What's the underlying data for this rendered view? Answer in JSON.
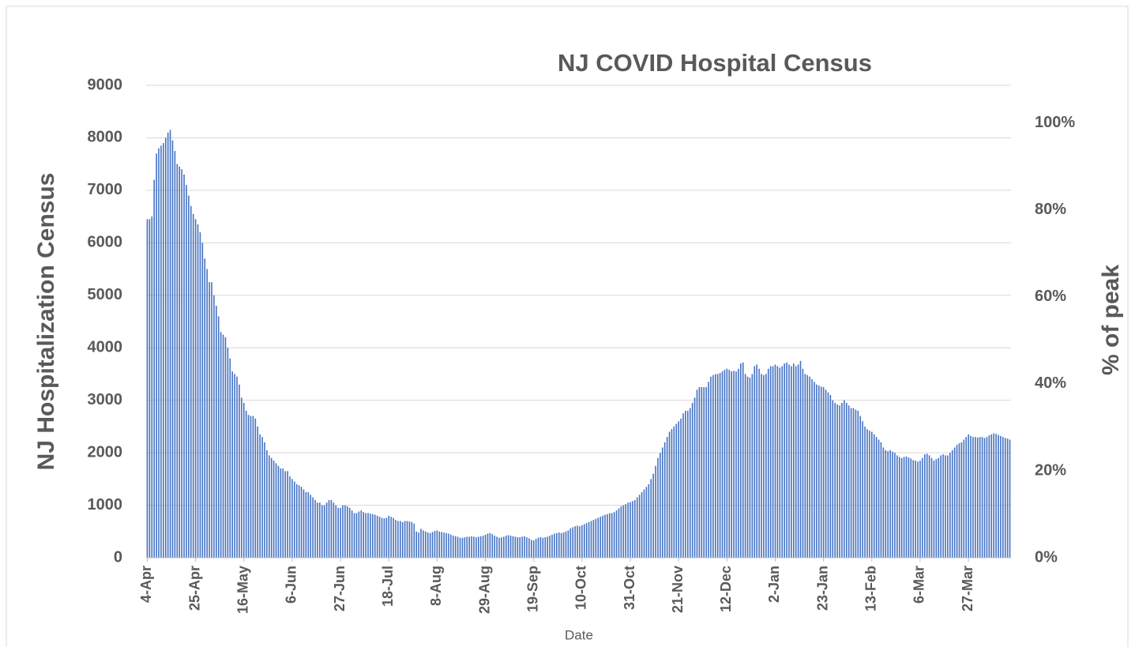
{
  "chart_data": {
    "type": "bar",
    "title": "NJ COVID Hospital Census",
    "xlabel": "Date",
    "ylabel": "NJ Hospitalization Census",
    "y2label": "% of peak",
    "color": "#4472c4",
    "grid": true,
    "ylim": [
      0,
      9000
    ],
    "yticks": [
      0,
      1000,
      2000,
      3000,
      4000,
      5000,
      6000,
      7000,
      8000,
      9000
    ],
    "y2lim": [
      0,
      108.7
    ],
    "y2ticks": [
      {
        "value": 0,
        "label": "0%"
      },
      {
        "value": 20,
        "label": "20%"
      },
      {
        "value": 40,
        "label": "40%"
      },
      {
        "value": 60,
        "label": "60%"
      },
      {
        "value": 80,
        "label": "80%"
      },
      {
        "value": 100,
        "label": "100%"
      }
    ],
    "categories": [
      "4-Apr",
      null,
      null,
      null,
      null,
      null,
      null,
      null,
      null,
      null,
      null,
      null,
      null,
      null,
      null,
      null,
      null,
      null,
      null,
      null,
      null,
      "25-Apr",
      null,
      null,
      null,
      null,
      null,
      null,
      null,
      null,
      null,
      null,
      null,
      null,
      null,
      null,
      null,
      null,
      null,
      null,
      null,
      null,
      "16-May",
      null,
      null,
      null,
      null,
      null,
      null,
      null,
      null,
      null,
      null,
      null,
      null,
      null,
      null,
      null,
      null,
      null,
      null,
      null,
      null,
      "6-Jun",
      null,
      null,
      null,
      null,
      null,
      null,
      null,
      null,
      null,
      null,
      null,
      null,
      null,
      null,
      null,
      null,
      null,
      null,
      null,
      null,
      "27-Jun",
      null,
      null,
      null,
      null,
      null,
      null,
      null,
      null,
      null,
      null,
      null,
      null,
      null,
      null,
      null,
      null,
      null,
      null,
      null,
      null,
      "18-Jul",
      null,
      null,
      null,
      null,
      null,
      null,
      null,
      null,
      null,
      null,
      null,
      null,
      null,
      null,
      null,
      null,
      null,
      null,
      null,
      null,
      "8-Aug",
      null,
      null,
      null,
      null,
      null,
      null,
      null,
      null,
      null,
      null,
      null,
      null,
      null,
      null,
      null,
      null,
      null,
      null,
      null,
      null,
      "29-Aug",
      null,
      null,
      null,
      null,
      null,
      null,
      null,
      null,
      null,
      null,
      null,
      null,
      null,
      null,
      null,
      null,
      null,
      null,
      null,
      null,
      "19-Sep",
      null,
      null,
      null,
      null,
      null,
      null,
      null,
      null,
      null,
      null,
      null,
      null,
      null,
      null,
      null,
      null,
      null,
      null,
      null,
      null,
      "10-Oct",
      null,
      null,
      null,
      null,
      null,
      null,
      null,
      null,
      null,
      null,
      null,
      null,
      null,
      null,
      null,
      null,
      null,
      null,
      null,
      null,
      "31-Oct",
      null,
      null,
      null,
      null,
      null,
      null,
      null,
      null,
      null,
      null,
      null,
      null,
      null,
      null,
      null,
      null,
      null,
      null,
      null,
      null,
      "21-Nov",
      null,
      null,
      null,
      null,
      null,
      null,
      null,
      null,
      null,
      null,
      null,
      null,
      null,
      null,
      null,
      null,
      null,
      null,
      null,
      null,
      "12-Dec",
      null,
      null,
      null,
      null,
      null,
      null,
      null,
      null,
      null,
      null,
      null,
      null,
      null,
      null,
      null,
      null,
      null,
      null,
      null,
      null,
      "2-Jan",
      null,
      null,
      null,
      null,
      null,
      null,
      null,
      null,
      null,
      null,
      null,
      null,
      null,
      null,
      null,
      null,
      null,
      null,
      null,
      null,
      "23-Jan",
      null,
      null,
      null,
      null,
      null,
      null,
      null,
      null,
      null,
      null,
      null,
      null,
      null,
      null,
      null,
      null,
      null,
      null,
      null,
      null,
      "13-Feb",
      null,
      null,
      null,
      null,
      null,
      null,
      null,
      null,
      null,
      null,
      null,
      null,
      null,
      null,
      null,
      null,
      null,
      null,
      null,
      null,
      "6-Mar",
      null,
      null,
      null,
      null,
      null,
      null,
      null,
      null,
      null,
      null,
      null,
      null,
      null,
      null,
      null,
      null,
      null,
      null,
      null,
      null,
      "27-Mar",
      null,
      null,
      null,
      null,
      null,
      null,
      null,
      null,
      null,
      null,
      null,
      null,
      null,
      null,
      null,
      null,
      null,
      null
    ],
    "values": [
      6450,
      6450,
      6500,
      7200,
      7700,
      7800,
      7850,
      7900,
      8000,
      8100,
      8150,
      7950,
      7750,
      7500,
      7450,
      7400,
      7300,
      7100,
      6900,
      6700,
      6550,
      6450,
      6350,
      6200,
      6000,
      5700,
      5500,
      5250,
      5250,
      5000,
      4800,
      4600,
      4300,
      4250,
      4200,
      4000,
      3800,
      3550,
      3500,
      3450,
      3300,
      3050,
      2950,
      2800,
      2720,
      2700,
      2700,
      2650,
      2500,
      2350,
      2300,
      2200,
      2050,
      1950,
      1900,
      1850,
      1800,
      1750,
      1700,
      1700,
      1650,
      1650,
      1550,
      1500,
      1450,
      1400,
      1380,
      1350,
      1300,
      1250,
      1250,
      1200,
      1150,
      1100,
      1050,
      1050,
      1000,
      1000,
      1050,
      1100,
      1100,
      1050,
      1000,
      950,
      950,
      1000,
      1000,
      980,
      950,
      900,
      850,
      850,
      880,
      900,
      870,
      850,
      850,
      840,
      830,
      820,
      800,
      780,
      760,
      750,
      760,
      800,
      780,
      760,
      720,
      700,
      700,
      680,
      700,
      700,
      690,
      680,
      650,
      500,
      480,
      550,
      520,
      500,
      480,
      470,
      490,
      510,
      520,
      500,
      490,
      480,
      470,
      460,
      440,
      420,
      410,
      400,
      380,
      380,
      390,
      400,
      400,
      410,
      400,
      390,
      400,
      410,
      420,
      440,
      460,
      470,
      450,
      420,
      400,
      380,
      390,
      400,
      420,
      430,
      420,
      410,
      400,
      390,
      390,
      400,
      410,
      390,
      370,
      340,
      330,
      360,
      380,
      390,
      380,
      390,
      400,
      420,
      440,
      460,
      470,
      480,
      470,
      480,
      500,
      520,
      560,
      580,
      600,
      610,
      600,
      620,
      640,
      660,
      680,
      700,
      720,
      740,
      760,
      780,
      800,
      820,
      830,
      850,
      850,
      870,
      900,
      940,
      980,
      1000,
      1020,
      1050,
      1060,
      1080,
      1100,
      1150,
      1200,
      1250,
      1300,
      1350,
      1400,
      1500,
      1600,
      1750,
      1900,
      2000,
      2100,
      2200,
      2300,
      2400,
      2450,
      2500,
      2550,
      2600,
      2650,
      2750,
      2800,
      2800,
      2850,
      2950,
      3050,
      3200,
      3250,
      3250,
      3250,
      3250,
      3350,
      3450,
      3480,
      3500,
      3500,
      3520,
      3550,
      3580,
      3600,
      3580,
      3550,
      3560,
      3550,
      3600,
      3700,
      3720,
      3500,
      3450,
      3430,
      3500,
      3650,
      3680,
      3600,
      3500,
      3480,
      3500,
      3600,
      3650,
      3650,
      3680,
      3650,
      3620,
      3650,
      3700,
      3720,
      3680,
      3650,
      3700,
      3650,
      3680,
      3750,
      3600,
      3500,
      3480,
      3450,
      3400,
      3350,
      3300,
      3280,
      3260,
      3250,
      3200,
      3150,
      3100,
      3000,
      2950,
      2920,
      2900,
      2950,
      3000,
      2950,
      2900,
      2850,
      2850,
      2820,
      2800,
      2700,
      2600,
      2500,
      2450,
      2420,
      2400,
      2350,
      2300,
      2250,
      2200,
      2100,
      2050,
      2030,
      2050,
      2020,
      2000,
      1950,
      1920,
      1900,
      1920,
      1930,
      1910,
      1890,
      1860,
      1850,
      1830,
      1850,
      1900,
      1970,
      1980,
      1950,
      1900,
      1850,
      1880,
      1900,
      1950,
      1970,
      1950,
      1950,
      2000,
      2050,
      2100,
      2150,
      2180,
      2200,
      2250,
      2300,
      2350,
      2320,
      2300,
      2300,
      2290,
      2300,
      2300,
      2280,
      2300,
      2330,
      2350,
      2370,
      2360,
      2340,
      2320,
      2300,
      2280,
      2270,
      2250
    ]
  }
}
